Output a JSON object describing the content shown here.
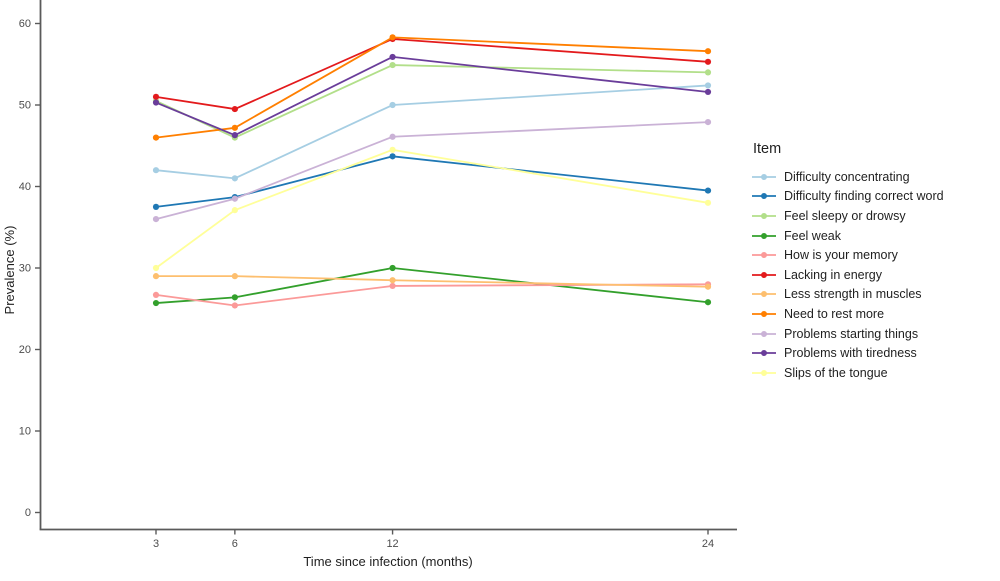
{
  "figure": {
    "y_axis_title": "Prevalence (%)",
    "x_axis_title": "Time since infection (months)",
    "legend_title": "Item"
  },
  "chart_data": {
    "type": "line",
    "title": "",
    "xlabel": "Time since infection (months)",
    "ylabel": "Prevalence (%)",
    "legend_title": "Item",
    "legend_position": "right",
    "grid": false,
    "x": [
      3,
      6,
      12,
      24
    ],
    "x_tick_labels": [
      "3",
      "6",
      "12",
      "24"
    ],
    "y_ticks": [
      0,
      10,
      20,
      30,
      40,
      50,
      60
    ],
    "ylim": [
      0,
      62
    ],
    "axis_color": "#5a5a5a",
    "tick_label_color": "#4d4d4d",
    "series": [
      {
        "name": "Difficulty concentrating",
        "color": "#a6cee3",
        "values": [
          42.0,
          41.0,
          50.0,
          52.4
        ]
      },
      {
        "name": "Difficulty finding correct word",
        "color": "#1f78b4",
        "values": [
          37.5,
          38.7,
          43.7,
          39.5
        ]
      },
      {
        "name": "Feel sleepy or drowsy",
        "color": "#b2df8a",
        "values": [
          50.5,
          46.0,
          54.9,
          54.0
        ]
      },
      {
        "name": "Feel weak",
        "color": "#33a02c",
        "values": [
          25.7,
          26.4,
          30.0,
          25.8
        ]
      },
      {
        "name": "How is your memory",
        "color": "#fb9a99",
        "values": [
          26.7,
          25.4,
          27.8,
          28.0
        ]
      },
      {
        "name": "Lacking in energy",
        "color": "#e31a1c",
        "values": [
          51.0,
          49.5,
          58.1,
          55.3
        ]
      },
      {
        "name": "Less strength in muscles",
        "color": "#fdbf6f",
        "values": [
          29.0,
          29.0,
          28.5,
          27.7
        ]
      },
      {
        "name": "Need to rest more",
        "color": "#ff7f00",
        "values": [
          46.0,
          47.2,
          58.3,
          56.6
        ]
      },
      {
        "name": "Problems starting things",
        "color": "#cab2d6",
        "values": [
          36.0,
          38.5,
          46.1,
          47.9
        ]
      },
      {
        "name": "Problems with tiredness",
        "color": "#6a3d9a",
        "values": [
          50.3,
          46.3,
          55.9,
          51.6
        ]
      },
      {
        "name": "Slips of the tongue",
        "color": "#ffff99",
        "values": [
          30.0,
          37.1,
          44.5,
          38.0
        ]
      }
    ]
  }
}
